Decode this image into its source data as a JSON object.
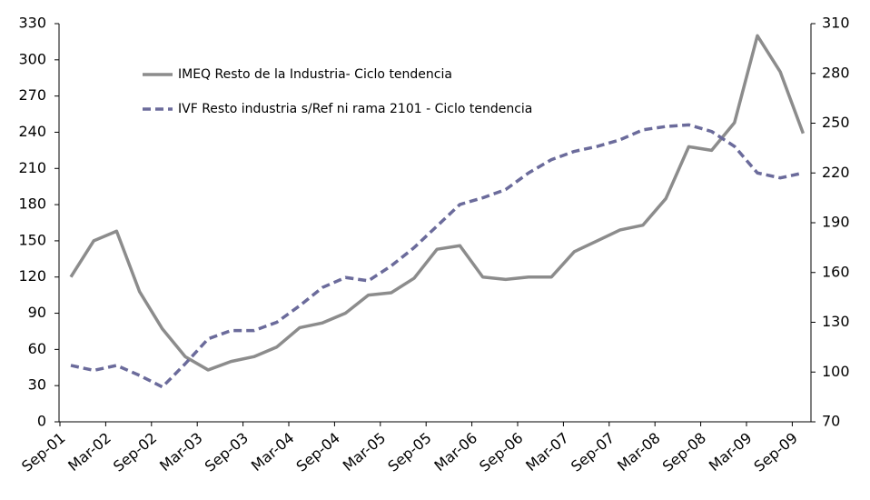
{
  "chart_data": {
    "type": "line",
    "categories": [
      "Sep-01",
      null,
      "Mar-02",
      null,
      "Sep-02",
      null,
      "Mar-03",
      null,
      "Sep-03",
      null,
      "Mar-04",
      null,
      "Sep-04",
      null,
      "Mar-05",
      null,
      "Sep-05",
      null,
      "Mar-06",
      null,
      "Sep-06",
      null,
      "Mar-07",
      null,
      "Sep-07",
      null,
      "Mar-08",
      null,
      "Sep-08",
      null,
      "Mar-09",
      null,
      "Sep-09"
    ],
    "series": [
      {
        "name": "IMEQ Resto de la Industria- Ciclo tendencia",
        "color": "#8c8c8c",
        "dash": false,
        "values": [
          120,
          150,
          158,
          108,
          77,
          54,
          43,
          50,
          54,
          62,
          78,
          82,
          90,
          105,
          107,
          119,
          143,
          146,
          120,
          118,
          120,
          120,
          141,
          150,
          159,
          163,
          185,
          228,
          225,
          248,
          320,
          290,
          239
        ]
      },
      {
        "name": "IVF Resto industria s/Ref ni rama 2101 - Ciclo tendencia",
        "color": "#6b6b9b",
        "dash": true,
        "axis": "y2",
        "values": [
          104,
          101,
          104,
          98,
          91,
          105,
          120,
          125,
          125,
          130,
          140,
          151,
          157,
          155,
          164,
          175,
          188,
          201,
          205,
          210,
          220,
          228,
          233,
          236,
          240,
          246,
          248,
          249,
          245,
          236,
          220,
          217,
          220
        ]
      }
    ],
    "ylim": [
      0,
      330
    ],
    "yticks": [
      0,
      30,
      60,
      90,
      120,
      150,
      180,
      210,
      240,
      270,
      300,
      330
    ],
    "y2lim": [
      70,
      310
    ],
    "y2ticks": [
      70,
      100,
      130,
      160,
      190,
      220,
      250,
      280,
      310
    ],
    "grid": false
  }
}
